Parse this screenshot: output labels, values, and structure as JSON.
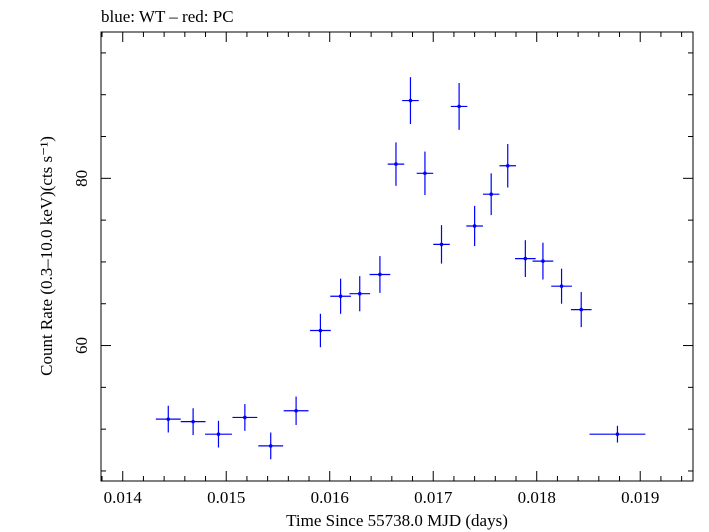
{
  "chart_data": {
    "type": "scatter",
    "title": "blue: WT – red: PC",
    "xlabel": "Time Since 55738.0 MJD (days)",
    "ylabel": "Count Rate (0.3–10.0 keV)(cts s⁻¹)",
    "xlim": [
      0.01379,
      0.01951
    ],
    "ylim": [
      43.8,
      97.5
    ],
    "x_ticks_major": [
      0.014,
      0.015,
      0.016,
      0.017,
      0.018,
      0.019
    ],
    "x_tick_labels": [
      "0.014",
      "0.015",
      "0.016",
      "0.017",
      "0.018",
      "0.019"
    ],
    "y_ticks_major": [
      60,
      80
    ],
    "y_tick_labels": [
      "60",
      "80"
    ],
    "grid": false,
    "colors": {
      "WT": "#0000ff",
      "PC": "#ff0000",
      "axis": "#000000"
    },
    "series": [
      {
        "name": "WT",
        "color": "#0000ff",
        "points": [
          {
            "x": 0.01444,
            "y": 51.2,
            "xerr": 0.00012,
            "yerr": 1.6
          },
          {
            "x": 0.01468,
            "y": 50.9,
            "xerr": 0.00012,
            "yerr": 1.6
          },
          {
            "x": 0.014925,
            "y": 49.4,
            "xerr": 0.00013,
            "yerr": 1.6
          },
          {
            "x": 0.01518,
            "y": 51.4,
            "xerr": 0.00012,
            "yerr": 1.6
          },
          {
            "x": 0.01543,
            "y": 48.0,
            "xerr": 0.00012,
            "yerr": 1.6
          },
          {
            "x": 0.015675,
            "y": 52.2,
            "xerr": 0.00012,
            "yerr": 1.7
          },
          {
            "x": 0.01591,
            "y": 61.8,
            "xerr": 0.0001,
            "yerr": 2.0
          },
          {
            "x": 0.016105,
            "y": 65.9,
            "xerr": 0.0001,
            "yerr": 2.1
          },
          {
            "x": 0.01629,
            "y": 66.2,
            "xerr": 0.0001,
            "yerr": 2.1
          },
          {
            "x": 0.016485,
            "y": 68.5,
            "xerr": 0.0001,
            "yerr": 2.2
          },
          {
            "x": 0.01664,
            "y": 81.7,
            "xerr": 8e-05,
            "yerr": 2.6
          },
          {
            "x": 0.01678,
            "y": 89.3,
            "xerr": 8e-05,
            "yerr": 2.8
          },
          {
            "x": 0.01692,
            "y": 80.6,
            "xerr": 8e-05,
            "yerr": 2.6
          },
          {
            "x": 0.01708,
            "y": 72.1,
            "xerr": 8e-05,
            "yerr": 2.3
          },
          {
            "x": 0.01725,
            "y": 88.6,
            "xerr": 8e-05,
            "yerr": 2.8
          },
          {
            "x": 0.0174,
            "y": 74.3,
            "xerr": 8e-05,
            "yerr": 2.4
          },
          {
            "x": 0.01756,
            "y": 78.1,
            "xerr": 8e-05,
            "yerr": 2.5
          },
          {
            "x": 0.01772,
            "y": 81.5,
            "xerr": 8e-05,
            "yerr": 2.6
          },
          {
            "x": 0.01789,
            "y": 70.4,
            "xerr": 0.0001,
            "yerr": 2.2
          },
          {
            "x": 0.01806,
            "y": 70.1,
            "xerr": 0.0001,
            "yerr": 2.2
          },
          {
            "x": 0.01824,
            "y": 67.1,
            "xerr": 0.0001,
            "yerr": 2.1
          },
          {
            "x": 0.01843,
            "y": 64.3,
            "xerr": 0.0001,
            "yerr": 2.1
          },
          {
            "x": 0.01878,
            "y": 49.4,
            "xerr": 0.00027,
            "yerr": 1.0
          }
        ]
      }
    ]
  }
}
